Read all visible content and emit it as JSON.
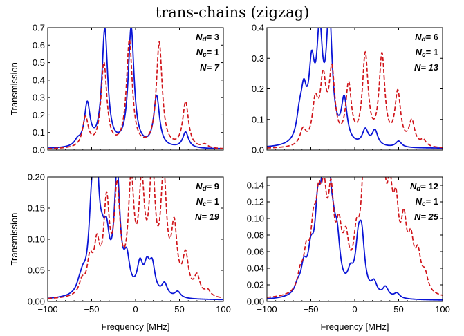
{
  "figure": {
    "title": "trans-chains (zigzag)",
    "colors": {
      "blue": "#0a14d6",
      "red": "#d0141a",
      "axis": "#000000"
    }
  },
  "chart_data": [
    {
      "type": "line",
      "panel": "top-left",
      "xlim": [
        -100,
        100
      ],
      "ylim": [
        0,
        0.7
      ],
      "xlabel": "",
      "ylabel": "Transmission",
      "xticks": [
        -100,
        -50,
        0,
        50,
        100
      ],
      "yticks": [
        0.0,
        0.1,
        0.2,
        0.3,
        0.4,
        0.5,
        0.6,
        0.7
      ],
      "ytick_labels": [
        "0.0",
        "0.1",
        "0.2",
        "0.3",
        "0.4",
        "0.5",
        "0.6",
        "0.7"
      ],
      "show_xtick_labels": false,
      "annotation": {
        "nd": "= 3",
        "nc": "= 1",
        "n": "N= 7"
      },
      "series": [
        {
          "color": "blue",
          "style": "solid",
          "width": 0.02,
          "baseline": 0.005,
          "peaks": [
            [
              -66,
              0.03
            ],
            [
              -55,
              0.24
            ],
            [
              -35,
              0.67
            ],
            [
              -5,
              0.68
            ],
            [
              24,
              0.29
            ],
            [
              57,
              0.09
            ]
          ]
        },
        {
          "color": "red",
          "style": "dashed",
          "width": 0.02,
          "baseline": 0.003,
          "peaks": [
            [
              -57,
              0.17
            ],
            [
              -36,
              0.48
            ],
            [
              -7,
              0.61
            ],
            [
              27,
              0.6
            ],
            [
              57,
              0.26
            ],
            [
              79,
              0.02
            ]
          ]
        }
      ]
    },
    {
      "type": "line",
      "panel": "top-right",
      "xlim": [
        -100,
        100
      ],
      "ylim": [
        0,
        0.4
      ],
      "xlabel": "",
      "ylabel": "",
      "xticks": [
        -100,
        -50,
        0,
        50,
        100
      ],
      "yticks": [
        0.0,
        0.1,
        0.2,
        0.3,
        0.4
      ],
      "ytick_labels": [
        "0.0",
        "0.1",
        "0.2",
        "0.3",
        "0.4"
      ],
      "show_xtick_labels": false,
      "annotation": {
        "nd": "= 6",
        "nc": "= 1",
        "n": "N= 13"
      },
      "series": [
        {
          "color": "blue",
          "style": "solid",
          "width": 0.02,
          "baseline": 0.005,
          "peaks": [
            [
              -63,
              0.07
            ],
            [
              -58,
              0.14
            ],
            [
              -49,
              0.22
            ],
            [
              -40,
              0.33
            ],
            [
              -29,
              0.41
            ],
            [
              -12,
              0.14
            ],
            [
              12,
              0.05
            ],
            [
              23,
              0.05
            ],
            [
              50,
              0.02
            ]
          ]
        },
        {
          "color": "red",
          "style": "dashed",
          "width": 0.02,
          "baseline": 0.003,
          "peaks": [
            [
              -59,
              0.05
            ],
            [
              -45,
              0.13
            ],
            [
              -36,
              0.2
            ],
            [
              -26,
              0.23
            ],
            [
              -7,
              0.19
            ],
            [
              12,
              0.29
            ],
            [
              31,
              0.29
            ],
            [
              49,
              0.17
            ],
            [
              65,
              0.08
            ],
            [
              78,
              0.02
            ]
          ]
        }
      ]
    },
    {
      "type": "line",
      "panel": "bottom-left",
      "xlim": [
        -100,
        100
      ],
      "ylim": [
        0,
        0.2
      ],
      "xlabel": "Frequency [MHz]",
      "ylabel": "Transmission",
      "xticks": [
        -100,
        -50,
        0,
        50,
        100
      ],
      "yticks": [
        0.0,
        0.05,
        0.1,
        0.15,
        0.2
      ],
      "ytick_labels": [
        "0.00",
        "0.05",
        "0.10",
        "0.15",
        "0.20"
      ],
      "show_xtick_labels": true,
      "annotation": {
        "nd": "= 9",
        "nc": "= 1",
        "n": "N= 19"
      },
      "series": [
        {
          "color": "blue",
          "style": "solid",
          "width": 0.02,
          "baseline": 0.002,
          "peaks": [
            [
              -64,
              0.01
            ],
            [
              -60,
              0.02
            ],
            [
              -50,
              0.1
            ],
            [
              -45,
              0.2
            ],
            [
              -38,
              0.04
            ],
            [
              -33,
              0.07
            ],
            [
              -21,
              0.19
            ],
            [
              -10,
              0.05
            ],
            [
              5,
              0.045
            ],
            [
              13,
              0.04
            ],
            [
              19,
              0.045
            ],
            [
              33,
              0.02
            ],
            [
              48,
              0.01
            ]
          ]
        },
        {
          "color": "red",
          "style": "dashed",
          "width": 0.02,
          "baseline": 0.002,
          "peaks": [
            [
              -61,
              0.02
            ],
            [
              -52,
              0.05
            ],
            [
              -44,
              0.07
            ],
            [
              -33,
              0.14
            ],
            [
              -21,
              0.16
            ],
            [
              -5,
              0.17
            ],
            [
              7,
              0.16
            ],
            [
              19,
              0.19
            ],
            [
              32,
              0.18
            ],
            [
              44,
              0.1
            ],
            [
              57,
              0.06
            ],
            [
              70,
              0.03
            ],
            [
              82,
              0.01
            ]
          ]
        }
      ]
    },
    {
      "type": "line",
      "panel": "bottom-right",
      "xlim": [
        -100,
        100
      ],
      "ylim": [
        0,
        0.15
      ],
      "xlabel": "Frequency [MHz]",
      "ylabel": "",
      "xticks": [
        -100,
        -50,
        0,
        50,
        100
      ],
      "yticks": [
        0.0,
        0.02,
        0.04,
        0.06,
        0.08,
        0.1,
        0.12,
        0.14
      ],
      "ytick_labels": [
        "0.00",
        "0.02",
        "0.04",
        "0.06",
        "0.08",
        "0.10",
        "0.12",
        "0.14"
      ],
      "show_xtick_labels": true,
      "annotation": {
        "nd": "= 12",
        "nc": "= 1",
        "n": "N= 25"
      },
      "series": [
        {
          "color": "blue",
          "style": "solid",
          "width": 0.02,
          "baseline": 0.001,
          "peaks": [
            [
              -65,
              0.01
            ],
            [
              -58,
              0.03
            ],
            [
              -50,
              0.04
            ],
            [
              -42,
              0.085
            ],
            [
              -36,
              0.07
            ],
            [
              -31,
              0.15
            ],
            [
              -25,
              0.04
            ],
            [
              -20,
              0.05
            ],
            [
              -5,
              0.02
            ],
            [
              4,
              0.05
            ],
            [
              8,
              0.06
            ],
            [
              22,
              0.015
            ],
            [
              35,
              0.012
            ],
            [
              48,
              0.006
            ]
          ]
        },
        {
          "color": "red",
          "style": "dashed",
          "width": 0.02,
          "baseline": 0.002,
          "peaks": [
            [
              -62,
              0.02
            ],
            [
              -55,
              0.04
            ],
            [
              -47,
              0.06
            ],
            [
              -41,
              0.08
            ],
            [
              -35,
              0.09
            ],
            [
              -27,
              0.1
            ],
            [
              -18,
              0.06
            ],
            [
              -10,
              0.05
            ],
            [
              2,
              0.05
            ],
            [
              11,
              0.12
            ],
            [
              17,
              0.13
            ],
            [
              24,
              0.12
            ],
            [
              32,
              0.12
            ],
            [
              40,
              0.09
            ],
            [
              47,
              0.08
            ],
            [
              56,
              0.07
            ],
            [
              64,
              0.05
            ],
            [
              72,
              0.04
            ],
            [
              80,
              0.02
            ]
          ]
        }
      ]
    }
  ]
}
